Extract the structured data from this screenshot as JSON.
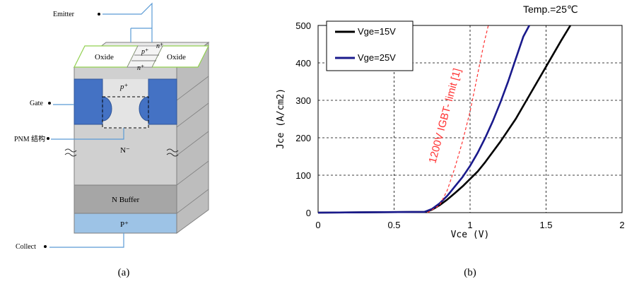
{
  "panel_a": {
    "caption": "(a)",
    "labels": {
      "emitter": "Emitter",
      "gate": "Gate",
      "pnm": "PNM 结构",
      "collect": "Collect",
      "oxide_left": "Oxide",
      "oxide_right": "Oxide",
      "p_plus_top": "p⁺",
      "n_plus_top_right": "n⁺",
      "n_plus_below": "n⁺",
      "p_plus_mid": "p⁺",
      "n_minus": "N⁻",
      "n_buffer": "N Buffer",
      "p_plus_bottom": "P⁺"
    },
    "colors": {
      "gate": "#4472c4",
      "collector": "#9dc3e6",
      "buffer": "#a6a6a6",
      "body": "#d9d9d9",
      "oxide_outline": "#92d050"
    }
  },
  "panel_b": {
    "caption": "(b)",
    "annotation_temp": "Temp.=25℃",
    "annotation_limit": "1200V IGBT- limit [1]",
    "colors": {
      "vge15": "#000000",
      "vge25": "#1a1a8c",
      "limit": "#ff3333"
    }
  },
  "chart_data": {
    "type": "line",
    "xlabel": "Vce (V)",
    "ylabel": "Jce (A/cm2)",
    "xlim": [
      0,
      2
    ],
    "ylim": [
      0,
      500
    ],
    "xticks": [
      0,
      0.5,
      1,
      1.5,
      2
    ],
    "xtick_labels": [
      "0",
      "0.5",
      "1",
      "1.5",
      "2"
    ],
    "yticks": [
      0,
      100,
      200,
      300,
      400,
      500
    ],
    "ytick_labels": [
      "0",
      "100",
      "200",
      "300",
      "400",
      "500"
    ],
    "grid": true,
    "legend_position": "top-left",
    "series": [
      {
        "name": "Vge=15V",
        "color": "#000000",
        "x": [
          0,
          0.7,
          0.75,
          0.8,
          0.85,
          0.9,
          0.95,
          1.0,
          1.05,
          1.1,
          1.2,
          1.3,
          1.4,
          1.5,
          1.6,
          1.66
        ],
        "y": [
          0,
          2,
          8,
          20,
          35,
          52,
          70,
          90,
          110,
          135,
          190,
          250,
          320,
          390,
          460,
          500
        ]
      },
      {
        "name": "Vge=25V",
        "color": "#1a1a8c",
        "x": [
          0,
          0.7,
          0.75,
          0.8,
          0.85,
          0.9,
          0.95,
          1.0,
          1.05,
          1.1,
          1.15,
          1.2,
          1.25,
          1.3,
          1.35,
          1.39
        ],
        "y": [
          0,
          2,
          10,
          25,
          45,
          70,
          95,
          125,
          160,
          200,
          245,
          295,
          350,
          410,
          470,
          500
        ]
      },
      {
        "name": "",
        "style": "dashed",
        "color": "#ff3333",
        "x": [
          0.72,
          0.8,
          0.85,
          0.9,
          0.95,
          1.0,
          1.03,
          1.06,
          1.09,
          1.12
        ],
        "y": [
          0,
          20,
          60,
          120,
          190,
          270,
          330,
          390,
          450,
          500
        ]
      }
    ]
  }
}
